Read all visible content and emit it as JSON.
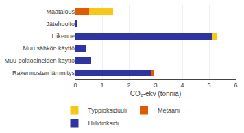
{
  "chart_data": {
    "type": "bar",
    "orientation": "horizontal",
    "stacked": true,
    "categories": [
      "Maatalous",
      "Jätehuolto",
      "Liikenne",
      "Muu sähkön käyttö",
      "Muu polttoaineiden käyttö",
      "Rakennusten lämmitys"
    ],
    "series": [
      {
        "name": "Hiilidioksidi",
        "color": "#2e34a0",
        "values": [
          0.0,
          0.05,
          5.1,
          0.4,
          0.6,
          2.85
        ]
      },
      {
        "name": "Metaani",
        "color": "#e05a00",
        "values": [
          0.5,
          0.0,
          0.0,
          0.0,
          0.0,
          0.1
        ]
      },
      {
        "name": "Typpioksiduuli",
        "color": "#f5c818",
        "values": [
          0.9,
          0.0,
          0.2,
          0.0,
          0.0,
          0.0
        ]
      }
    ],
    "xlabel": "CO₂-ekv (tonnia)",
    "xlim": [
      0,
      6
    ],
    "xticks": [
      0,
      1,
      2,
      3,
      4,
      5,
      6
    ],
    "grid": true,
    "legend": "bottom"
  }
}
